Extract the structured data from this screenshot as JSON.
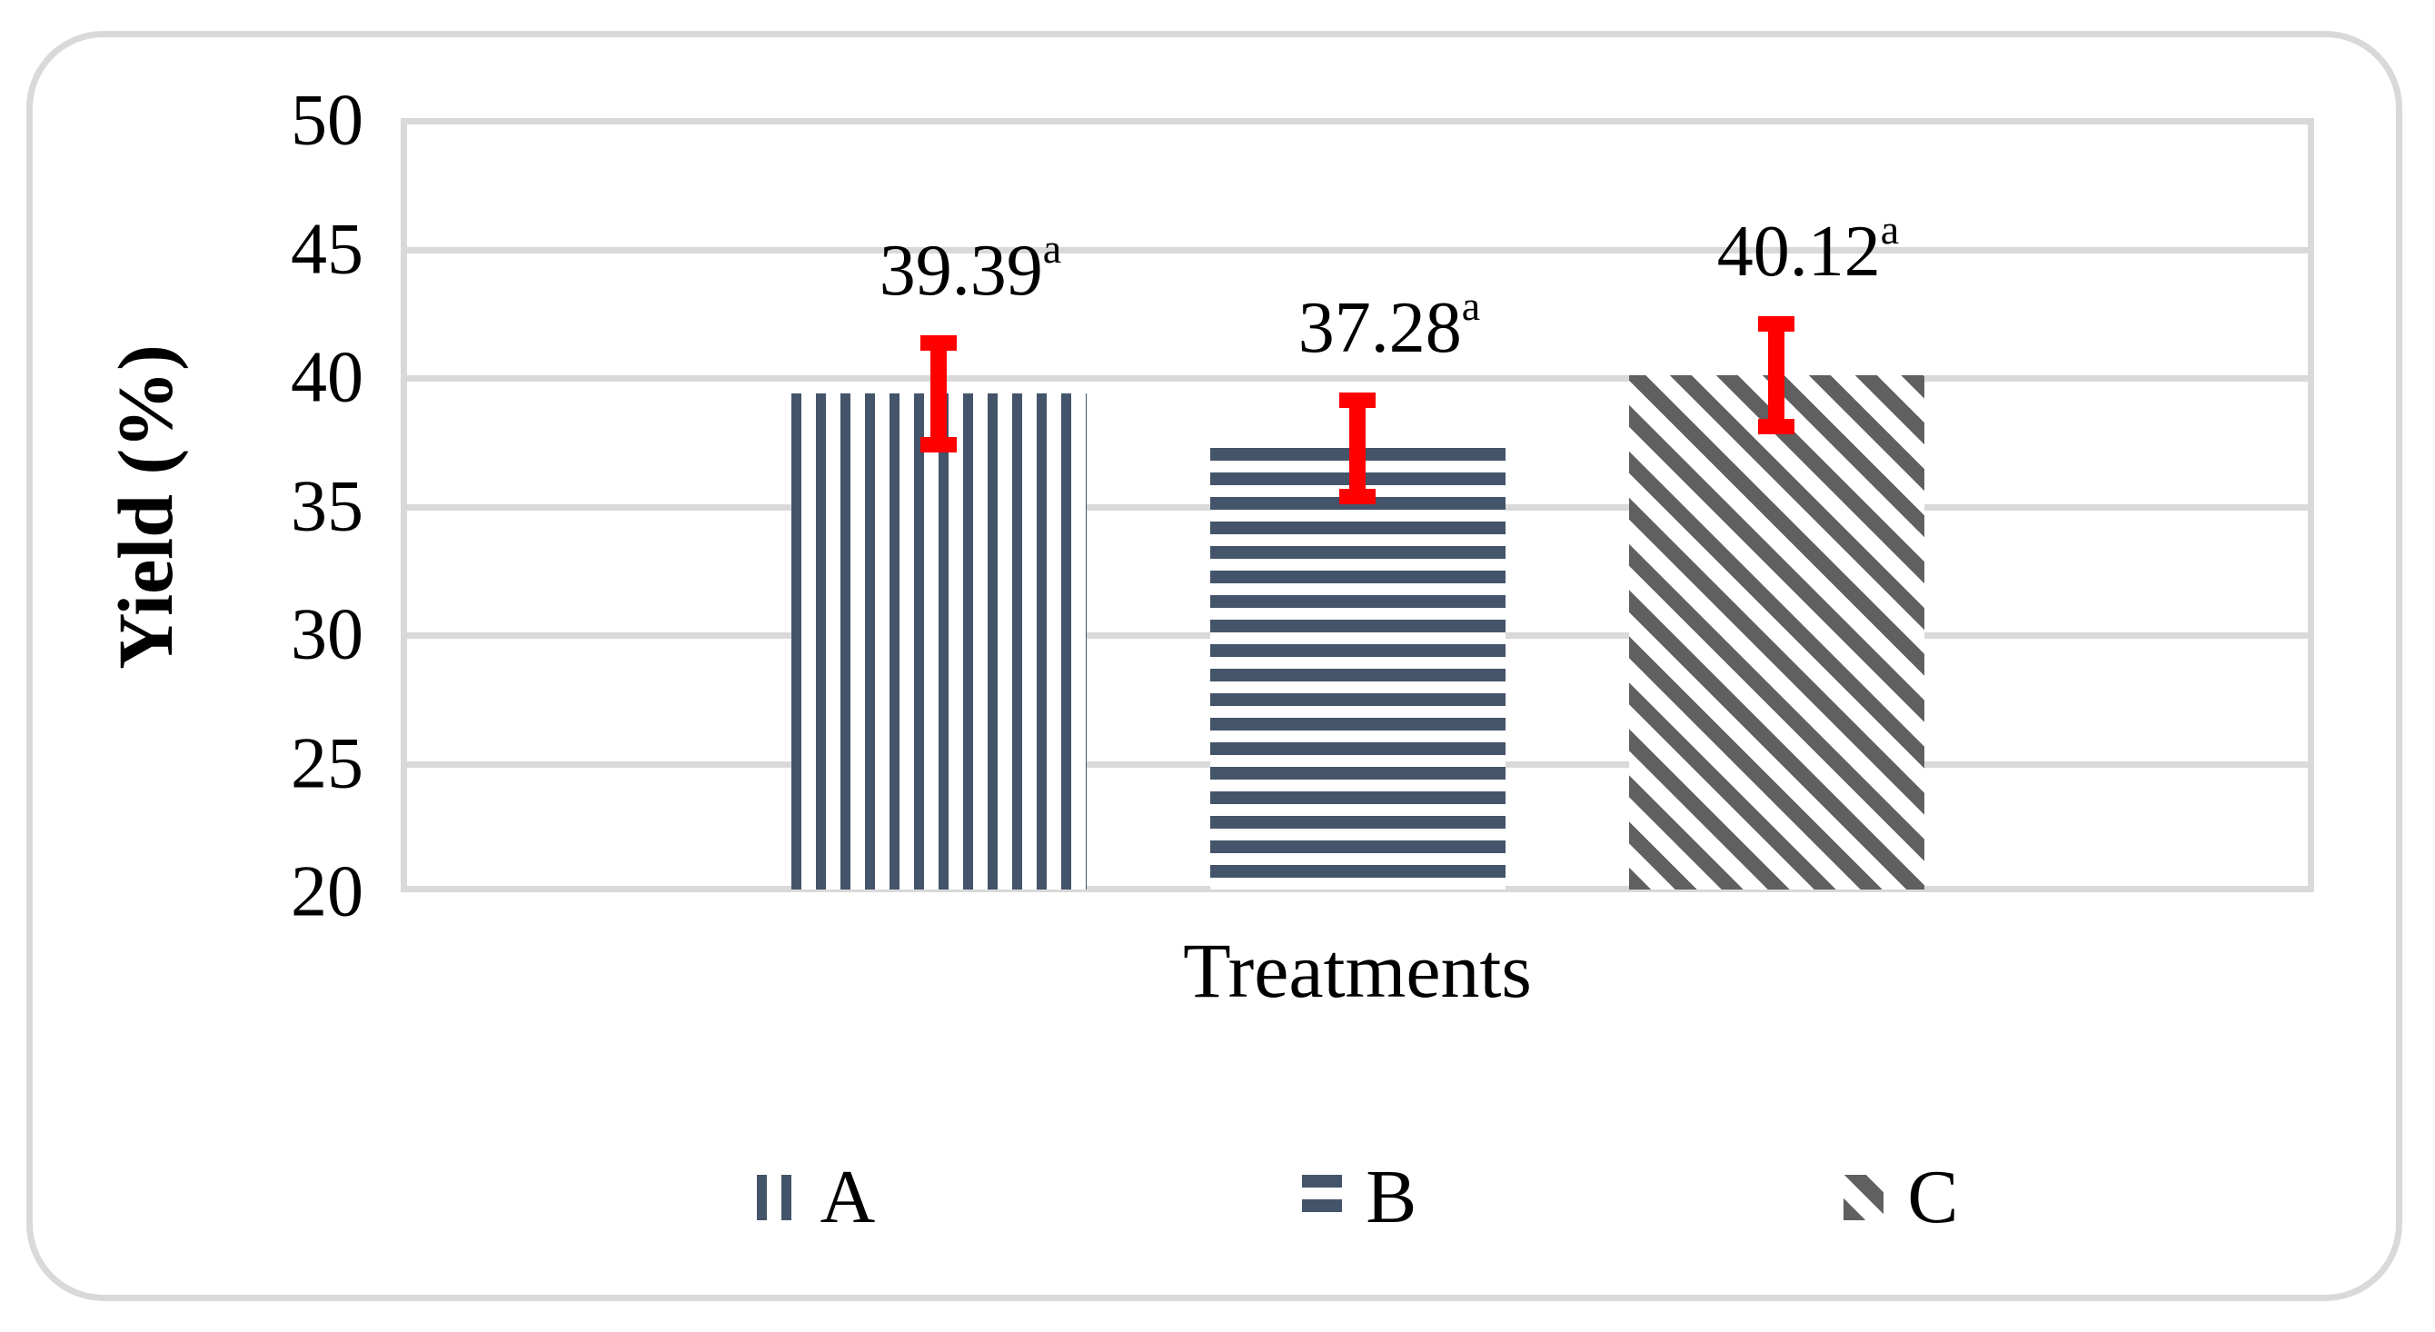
{
  "figure": {
    "background_color": "#ffffff",
    "frame_border_color": "#d9d9d9"
  },
  "chart_data": {
    "type": "bar",
    "title": "",
    "xlabel": "Treatments",
    "ylabel": "Yield (%)",
    "ylim": [
      20,
      50
    ],
    "yticks": [
      20,
      25,
      30,
      35,
      40,
      45,
      50
    ],
    "grid": true,
    "gridline_color": "#d9d9d9",
    "error_bar_color": "#ff0000",
    "legend_position": "bottom",
    "categories": [
      "A",
      "B",
      "C"
    ],
    "series": [
      {
        "name": "A",
        "value": 39.39,
        "label": "39.39",
        "superscript": "a",
        "error_plus": 2.28,
        "error_minus": 2.29,
        "pattern": "vertical-stripes",
        "color": "#44546a"
      },
      {
        "name": "B",
        "value": 37.28,
        "label": "37.28",
        "superscript": "a",
        "error_plus": 2.17,
        "error_minus": 2.19,
        "pattern": "horizontal-stripes",
        "color": "#44546a"
      },
      {
        "name": "C",
        "value": 40.12,
        "label": "40.12",
        "superscript": "a",
        "error_plus": 2.28,
        "error_minus": 2.31,
        "pattern": "diagonal-stripes",
        "color": "#606060"
      }
    ]
  }
}
